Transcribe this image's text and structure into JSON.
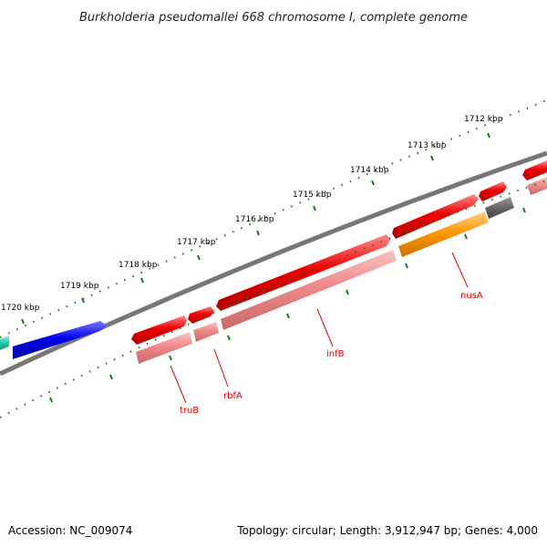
{
  "title": "Burkholderia pseudomallei 668 chromosome I, complete genome",
  "accession": "Accession: NC_009074",
  "topology": "Topology: circular; Length: 3,912,947 bp; Genes: 4,000",
  "ruler_labels": [
    "1712 kbp",
    "1713 kbp",
    "1714 kbp",
    "1715 kbp",
    "1716 kbp",
    "1717 kbp",
    "1718 kbp",
    "1719 kbp",
    "1720 kbp"
  ],
  "genes": [
    {
      "name": "truB",
      "strand": "forward",
      "feature_type": "CDS"
    },
    {
      "name": "rbfA",
      "strand": "forward",
      "feature_type": "CDS"
    },
    {
      "name": "infB",
      "strand": "forward",
      "feature_type": "CDS"
    },
    {
      "name": "nusA",
      "strand": "forward",
      "feature_type": "CDS"
    }
  ],
  "colors": {
    "cds": "#ee0000",
    "cds_secondary": "#ee8080",
    "gene_other": "#0000ee",
    "gene_misc": "#22ccaa",
    "highlight": "#ff9900",
    "backbone": "#777777",
    "tick": "#1a7a1a",
    "label": "#e00000"
  }
}
